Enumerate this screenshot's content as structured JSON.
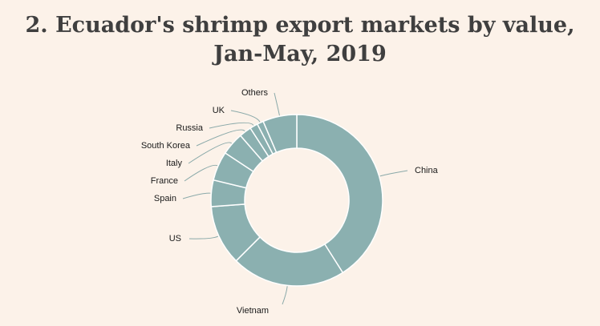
{
  "title_line1": "2. Ecuador's shrimp export markets by value,",
  "title_line2": "Jan-May, 2019",
  "chart_data": {
    "type": "pie",
    "variant": "donut",
    "title": "2. Ecuador's shrimp export markets by value, Jan-May, 2019",
    "color": "#8bb0b0",
    "slices": [
      {
        "label": "China",
        "value": 41.0
      },
      {
        "label": "Vietnam",
        "value": 21.5
      },
      {
        "label": "US",
        "value": 11.3
      },
      {
        "label": "Spain",
        "value": 5.0
      },
      {
        "label": "France",
        "value": 5.5
      },
      {
        "label": "Italy",
        "value": 4.3
      },
      {
        "label": "South Korea",
        "value": 2.3
      },
      {
        "label": "Russia",
        "value": 1.5
      },
      {
        "label": "UK",
        "value": 1.2
      },
      {
        "label": "Others",
        "value": 6.4
      }
    ]
  }
}
